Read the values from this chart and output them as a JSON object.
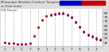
{
  "title": "Milwaukee Weather Outdoor Temperature\nvs Heat Index\n(24 Hours)",
  "bg_color": "#dddddd",
  "plot_bg": "#ffffff",
  "temp_color": "#cc0000",
  "heat_color": "#0000cc",
  "hours": [
    1,
    2,
    3,
    4,
    5,
    6,
    7,
    8,
    9,
    10,
    11,
    12,
    13,
    14,
    15,
    16,
    17,
    18,
    19,
    20,
    21,
    22,
    23,
    24
  ],
  "temp": [
    45,
    44,
    44,
    43,
    43,
    43,
    44,
    52,
    63,
    72,
    76,
    78,
    79,
    80,
    80,
    78,
    75,
    70,
    64,
    58,
    54,
    52,
    50,
    49
  ],
  "heat_index": [
    45,
    44,
    44,
    43,
    43,
    43,
    44,
    52,
    63,
    72,
    76,
    77,
    78,
    79,
    79,
    77,
    74,
    69,
    63,
    57,
    53,
    51,
    49,
    48
  ],
  "ylim_min": 40,
  "ylim_max": 85,
  "yticks": [
    45,
    50,
    55,
    60,
    65,
    70,
    75,
    80
  ],
  "xtick_pos": [
    1,
    3,
    5,
    7,
    9,
    11,
    13,
    15,
    17,
    19,
    21,
    23
  ],
  "xtick_labels": [
    "1",
    "3",
    "5",
    "7",
    "9",
    "1",
    "3",
    "5",
    "7",
    "9",
    "1",
    "3"
  ],
  "vlines": [
    1,
    3,
    5,
    7,
    9,
    11,
    13,
    15,
    17,
    19,
    21,
    23
  ]
}
